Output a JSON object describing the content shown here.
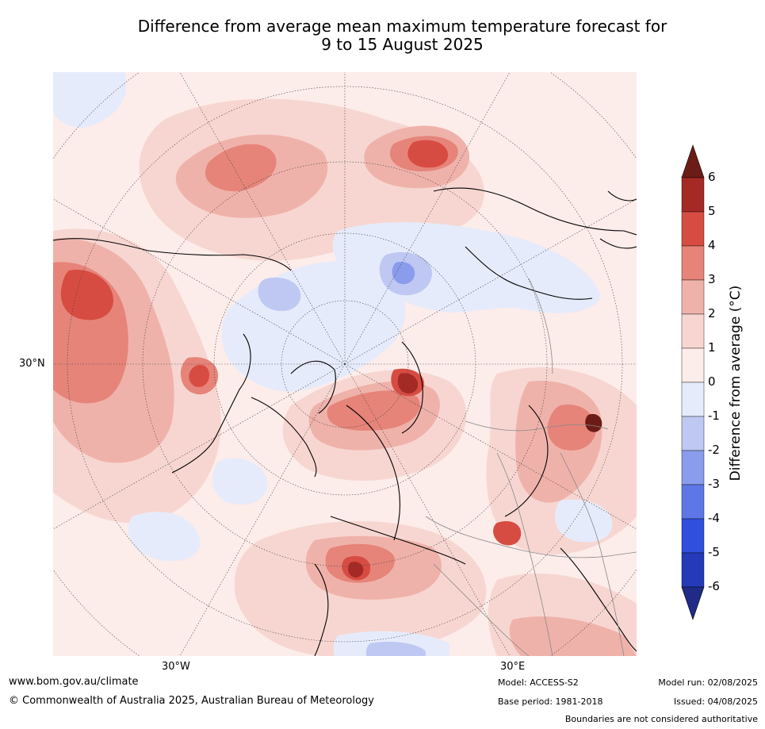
{
  "title": {
    "line1": "Difference from average mean maximum temperature forecast for",
    "line2": "9 to 15 August 2025"
  },
  "axis_labels": {
    "lat_30n": "30°N",
    "lon_30w": "30°W",
    "lon_30e": "30°E"
  },
  "colorbar": {
    "label": "Difference from average (°C)",
    "ticks": [
      "6",
      "5",
      "4",
      "3",
      "2",
      "1",
      "0",
      "-1",
      "-2",
      "-3",
      "-4",
      "-5",
      "-6"
    ],
    "colors": [
      "#a52a25",
      "#d74c42",
      "#e6847a",
      "#efb2aa",
      "#f7d6d1",
      "#fcecea",
      "#e6ebfb",
      "#bfc8f2",
      "#8a9cec",
      "#5d78e6",
      "#2f4fdc",
      "#243ab8"
    ],
    "over_color": "#6b1c16",
    "under_color": "#1f2b86"
  },
  "footer": {
    "website": "www.bom.gov.au/climate",
    "copyright": "© Commonwealth of Australia 2025, Australian Bureau of Meteorology",
    "model": "Model: ACCESS-S2",
    "base_period": "Base period: 1981-2018",
    "model_run": "Model run: 02/08/2025",
    "issued": "Issued: 04/08/2025",
    "disclaimer": "Boundaries are not considered authoritative"
  }
}
